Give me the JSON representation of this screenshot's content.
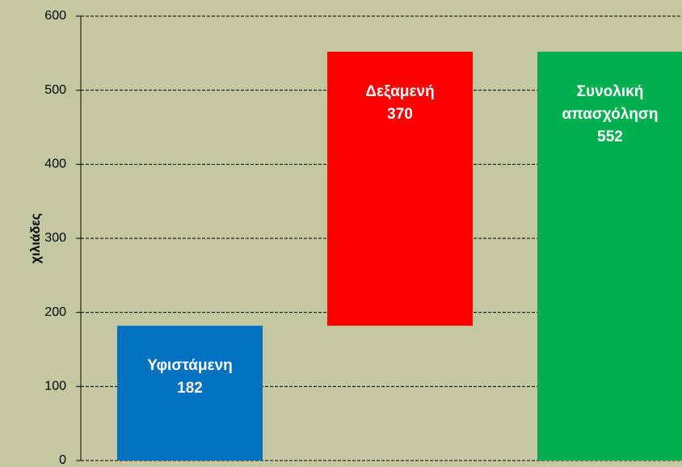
{
  "chart_data": {
    "type": "waterfall",
    "ylabel": "χιλιάδες",
    "categories": [
      "Υφιστάμενη",
      "Δεξαμενή",
      "Συνολική απασχόληση"
    ],
    "values": [
      182,
      370,
      552
    ],
    "total": [
      false,
      false,
      true
    ],
    "colors": [
      "#0070c0",
      "#ff0000",
      "#00b050"
    ],
    "ylim": [
      0,
      600
    ],
    "yticks": [
      0,
      100,
      200,
      300,
      400,
      500,
      600
    ],
    "grid": true
  }
}
